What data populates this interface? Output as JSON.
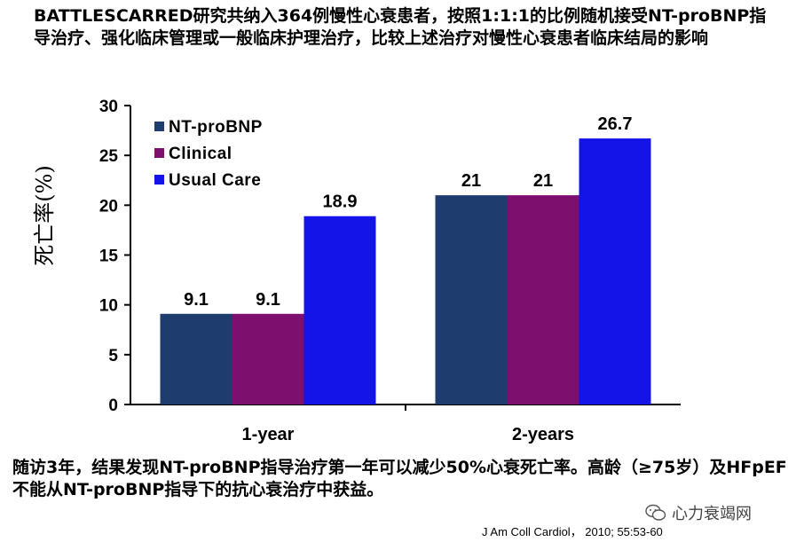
{
  "header": {
    "text": "BATTLESCARRED研究共纳入364例慢性心衰患者，按照1:1:1的比例随机接受NT-proBNP指导治疗、强化临床管理或一般临床护理治疗，比较上述治疗对慢性心衰患者临床结局的影响"
  },
  "chart_data": {
    "type": "bar",
    "categories": [
      "1-year",
      "2-years"
    ],
    "series": [
      {
        "name": "NT-proBNP",
        "values": [
          9.1,
          21
        ],
        "color": "#1F3C6E"
      },
      {
        "name": "Clinical",
        "values": [
          9.1,
          21
        ],
        "color": "#7D0F6E"
      },
      {
        "name": "Usual Care",
        "values": [
          18.9,
          26.7
        ],
        "color": "#1414E8"
      }
    ],
    "data_labels": [
      [
        "9.1",
        "9.1",
        "18.9"
      ],
      [
        "21",
        "21",
        "26.7"
      ]
    ],
    "ylabel": "死亡率(%)",
    "ylim": [
      0,
      30
    ],
    "yticks": [
      0,
      5,
      10,
      15,
      20,
      25,
      30
    ],
    "legend_position": "top-left",
    "grid": false
  },
  "footer": {
    "text": "随访3年，结果发现NT-proBNP指导治疗第一年可以减少50%心衰死亡率。高龄（≥75岁）及HFpEF不能从NT-proBNP指导下的抗心衰治疗中获益。"
  },
  "citation": "J Am Coll Cardiol， 2010; 55:53-60",
  "watermark": {
    "text": "心力衰竭网",
    "icon": "wechat-icon"
  }
}
